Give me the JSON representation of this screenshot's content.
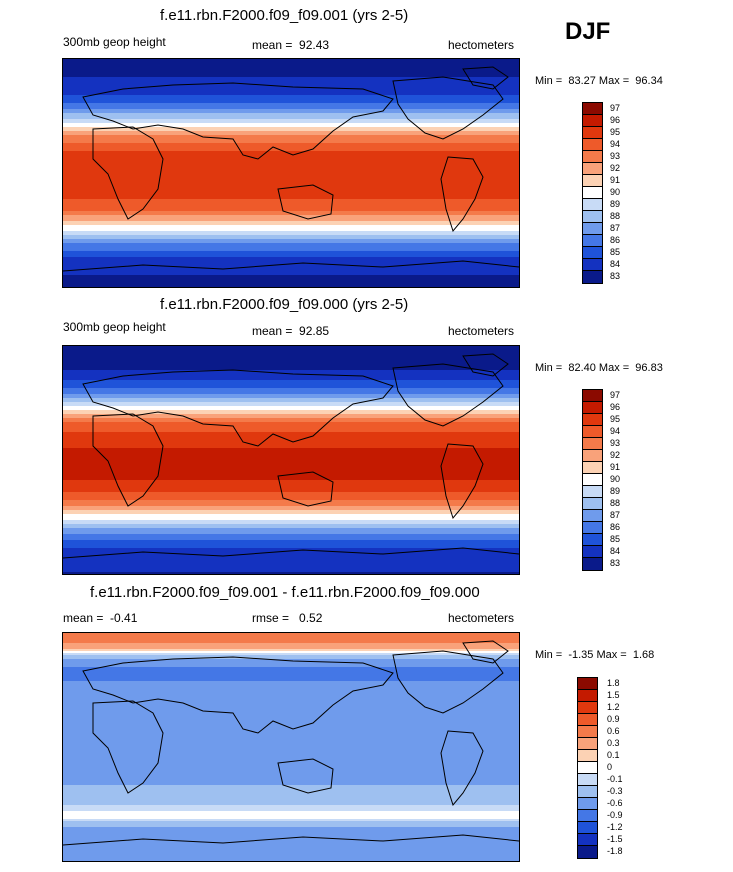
{
  "season": "DJF",
  "chart_data": [
    {
      "type": "heatmap",
      "title": "f.e11.rbn.F2000.f09_f09.001 (yrs 2-5)",
      "variable": "300mb geop height",
      "mean": "92.43",
      "units": "hectometers",
      "min": "83.27",
      "max": "96.34",
      "colorbar_levels": [
        "97",
        "96",
        "95",
        "94",
        "93",
        "92",
        "91",
        "90",
        "89",
        "88",
        "87",
        "86",
        "85",
        "84",
        "83"
      ],
      "colorbar_colors": [
        "#8b0a00",
        "#c41a00",
        "#e0380e",
        "#ee5a2a",
        "#f47a4a",
        "#f9a27a",
        "#fcd2b4",
        "#ffffff",
        "#c8dbf6",
        "#9ec0f0",
        "#6f9bec",
        "#4477e6",
        "#1f53d9",
        "#1432c0",
        "#0a1a8a"
      ],
      "field_profile": [
        {
          "lat": 90,
          "value": 83.3
        },
        {
          "lat": 65,
          "value": 84.5
        },
        {
          "lat": 50,
          "value": 87
        },
        {
          "lat": 40,
          "value": 90
        },
        {
          "lat": 30,
          "value": 93
        },
        {
          "lat": 15,
          "value": 95.4
        },
        {
          "lat": 0,
          "value": 95.6
        },
        {
          "lat": -15,
          "value": 95.5
        },
        {
          "lat": -30,
          "value": 94
        },
        {
          "lat": -45,
          "value": 90
        },
        {
          "lat": -55,
          "value": 87
        },
        {
          "lat": -70,
          "value": 84.5
        },
        {
          "lat": -90,
          "value": 83.6
        }
      ]
    },
    {
      "type": "heatmap",
      "title": "f.e11.rbn.F2000.f09_f09.000 (yrs 2-5)",
      "variable": "300mb geop height",
      "mean": "92.85",
      "units": "hectometers",
      "min": "82.40",
      "max": "96.83",
      "colorbar_levels": [
        "97",
        "96",
        "95",
        "94",
        "93",
        "92",
        "91",
        "90",
        "89",
        "88",
        "87",
        "86",
        "85",
        "84",
        "83"
      ],
      "colorbar_colors": [
        "#8b0a00",
        "#c41a00",
        "#e0380e",
        "#ee5a2a",
        "#f47a4a",
        "#f9a27a",
        "#fcd2b4",
        "#ffffff",
        "#c8dbf6",
        "#9ec0f0",
        "#6f9bec",
        "#4477e6",
        "#1f53d9",
        "#1432c0",
        "#0a1a8a"
      ],
      "field_profile": [
        {
          "lat": 90,
          "value": 82.6
        },
        {
          "lat": 65,
          "value": 84.5
        },
        {
          "lat": 50,
          "value": 87.5
        },
        {
          "lat": 40,
          "value": 91
        },
        {
          "lat": 30,
          "value": 94
        },
        {
          "lat": 15,
          "value": 95.9
        },
        {
          "lat": 0,
          "value": 96.2
        },
        {
          "lat": -15,
          "value": 96
        },
        {
          "lat": -30,
          "value": 94.5
        },
        {
          "lat": -45,
          "value": 90.5
        },
        {
          "lat": -55,
          "value": 87.5
        },
        {
          "lat": -70,
          "value": 84.8
        },
        {
          "lat": -90,
          "value": 83.9
        }
      ]
    },
    {
      "type": "heatmap",
      "title": "f.e11.rbn.F2000.f09_f09.001 - f.e11.rbn.F2000.f09_f09.000",
      "mean": "-0.41",
      "rmse": "0.52",
      "units": "hectometers",
      "min": "-1.35",
      "max": "1.68",
      "colorbar_levels": [
        "1.8",
        "1.5",
        "1.2",
        "0.9",
        "0.6",
        "0.3",
        "0.1",
        "0",
        "-0.1",
        "-0.3",
        "-0.6",
        "-0.9",
        "-1.2",
        "-1.5",
        "-1.8"
      ],
      "colorbar_colors": [
        "#8b0a00",
        "#c41a00",
        "#e0380e",
        "#ee5a2a",
        "#f47a4a",
        "#f9a27a",
        "#fcd2b4",
        "#ffffff",
        "#c8dbf6",
        "#9ec0f0",
        "#6f9bec",
        "#4477e6",
        "#1f53d9",
        "#1432c0",
        "#0a1a8a"
      ],
      "field_profile": [
        {
          "lat": 90,
          "value": 0.9
        },
        {
          "lat": 80,
          "value": 0.5
        },
        {
          "lat": 70,
          "value": -0.3
        },
        {
          "lat": 60,
          "value": -0.7
        },
        {
          "lat": 45,
          "value": -0.5
        },
        {
          "lat": 20,
          "value": -0.45
        },
        {
          "lat": 0,
          "value": -0.35
        },
        {
          "lat": -20,
          "value": -0.35
        },
        {
          "lat": -40,
          "value": -0.25
        },
        {
          "lat": -55,
          "value": 0.1
        },
        {
          "lat": -65,
          "value": -0.4
        },
        {
          "lat": -80,
          "value": -0.35
        },
        {
          "lat": -90,
          "value": -0.3
        }
      ]
    }
  ]
}
